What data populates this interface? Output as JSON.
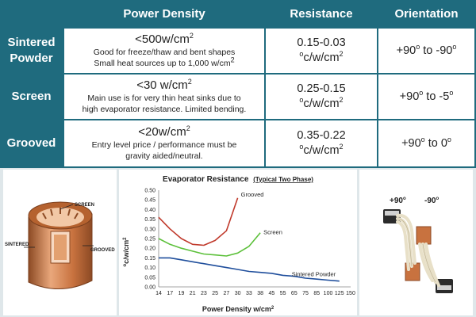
{
  "table": {
    "headers": {
      "power_density": "Power Density",
      "resistance": "Resistance",
      "orientation": "Orientation"
    },
    "rows": [
      {
        "label_line1": "Sintered",
        "label_line2": "Powder",
        "power_main": "<500w/cm",
        "power_sup": "2",
        "power_desc1": "Good for freeze/thaw and bent shapes",
        "power_desc2_pre": "Small heat sources up to 1,000 w/cm",
        "power_desc2_sup": "2",
        "resistance_value": "0.15-0.03",
        "orientation_from": "+90",
        "orientation_mid": " to -90"
      },
      {
        "label_line1": "Screen",
        "label_line2": "",
        "power_main": "<30 w/cm",
        "power_sup": "2",
        "power_desc1": "Main use is for very thin heat sinks due to",
        "power_desc2_pre": "high evaporator resistance. Limited bending.",
        "power_desc2_sup": "",
        "resistance_value": "0.25-0.15",
        "orientation_from": "+90",
        "orientation_mid": " to -5"
      },
      {
        "label_line1": "Grooved",
        "label_line2": "",
        "power_main": "<20w/cm",
        "power_sup": "2",
        "power_desc1": "Entry level price / performance must be",
        "power_desc2_pre": "gravity aided/neutral.",
        "power_desc2_sup": "",
        "resistance_value": "0.35-0.22",
        "orientation_from": "+90",
        "orientation_mid": " to 0"
      }
    ],
    "resistance_unit_pre": "c/w/cm",
    "resistance_unit_o": "o",
    "resistance_unit_sup": "2",
    "degree_sup": "o",
    "colors": {
      "header_bg": "#1f6b7e",
      "cell_bg": "#ffffff"
    }
  },
  "pipe_figure": {
    "labels": {
      "screen": "SCREEN",
      "sintered": "SINTERED",
      "grooved": "GROOVED"
    },
    "colors": {
      "copper": "#c8723f",
      "copper_light": "#e9a77b",
      "copper_dark": "#8c4a24"
    }
  },
  "orientation_figure": {
    "label_plus": "+90",
    "label_minus": "-90",
    "label_sup": "o"
  },
  "chart_data": {
    "type": "line",
    "title": "Evaporator Resistance",
    "title_suffix": "(Typical Two Phase)",
    "xlabel": "Power Density w/cm",
    "xlabel_sup": "2",
    "ylabel": "c/w/cm",
    "ylabel_o": "o",
    "ylabel_sup": "2",
    "categories": [
      "14",
      "17",
      "19",
      "21",
      "23",
      "25",
      "27",
      "30",
      "33",
      "38",
      "45",
      "55",
      "65",
      "75",
      "85",
      "100",
      "125",
      "150"
    ],
    "y_ticks": [
      "0.00",
      "0.05",
      "0.10",
      "0.15",
      "0.20",
      "0.25",
      "0.30",
      "0.35",
      "0.40",
      "0.45",
      "0.50"
    ],
    "ylim": [
      0,
      0.5
    ],
    "grid": false,
    "series": [
      {
        "name": "Grooved",
        "color": "#c0392b",
        "points": [
          [
            0,
            0.36
          ],
          [
            1,
            0.3
          ],
          [
            2,
            0.25
          ],
          [
            3,
            0.22
          ],
          [
            4,
            0.215
          ],
          [
            5,
            0.24
          ],
          [
            6,
            0.29
          ],
          [
            7,
            0.46
          ]
        ]
      },
      {
        "name": "Screen",
        "color": "#5cc03a",
        "points": [
          [
            0,
            0.25
          ],
          [
            1,
            0.22
          ],
          [
            2,
            0.2
          ],
          [
            3,
            0.185
          ],
          [
            4,
            0.17
          ],
          [
            5,
            0.165
          ],
          [
            6,
            0.16
          ],
          [
            7,
            0.175
          ],
          [
            8,
            0.21
          ],
          [
            9,
            0.28
          ]
        ]
      },
      {
        "name": "Sintered Powder",
        "color": "#1f4e9c",
        "points": [
          [
            0,
            0.15
          ],
          [
            1,
            0.15
          ],
          [
            2,
            0.14
          ],
          [
            3,
            0.13
          ],
          [
            4,
            0.12
          ],
          [
            5,
            0.11
          ],
          [
            6,
            0.1
          ],
          [
            7,
            0.09
          ],
          [
            8,
            0.08
          ],
          [
            9,
            0.075
          ],
          [
            10,
            0.07
          ],
          [
            11,
            0.06
          ],
          [
            12,
            0.055
          ],
          [
            13,
            0.045
          ],
          [
            14,
            0.04
          ],
          [
            15,
            0.035
          ],
          [
            16,
            0.03
          ]
        ]
      }
    ]
  }
}
